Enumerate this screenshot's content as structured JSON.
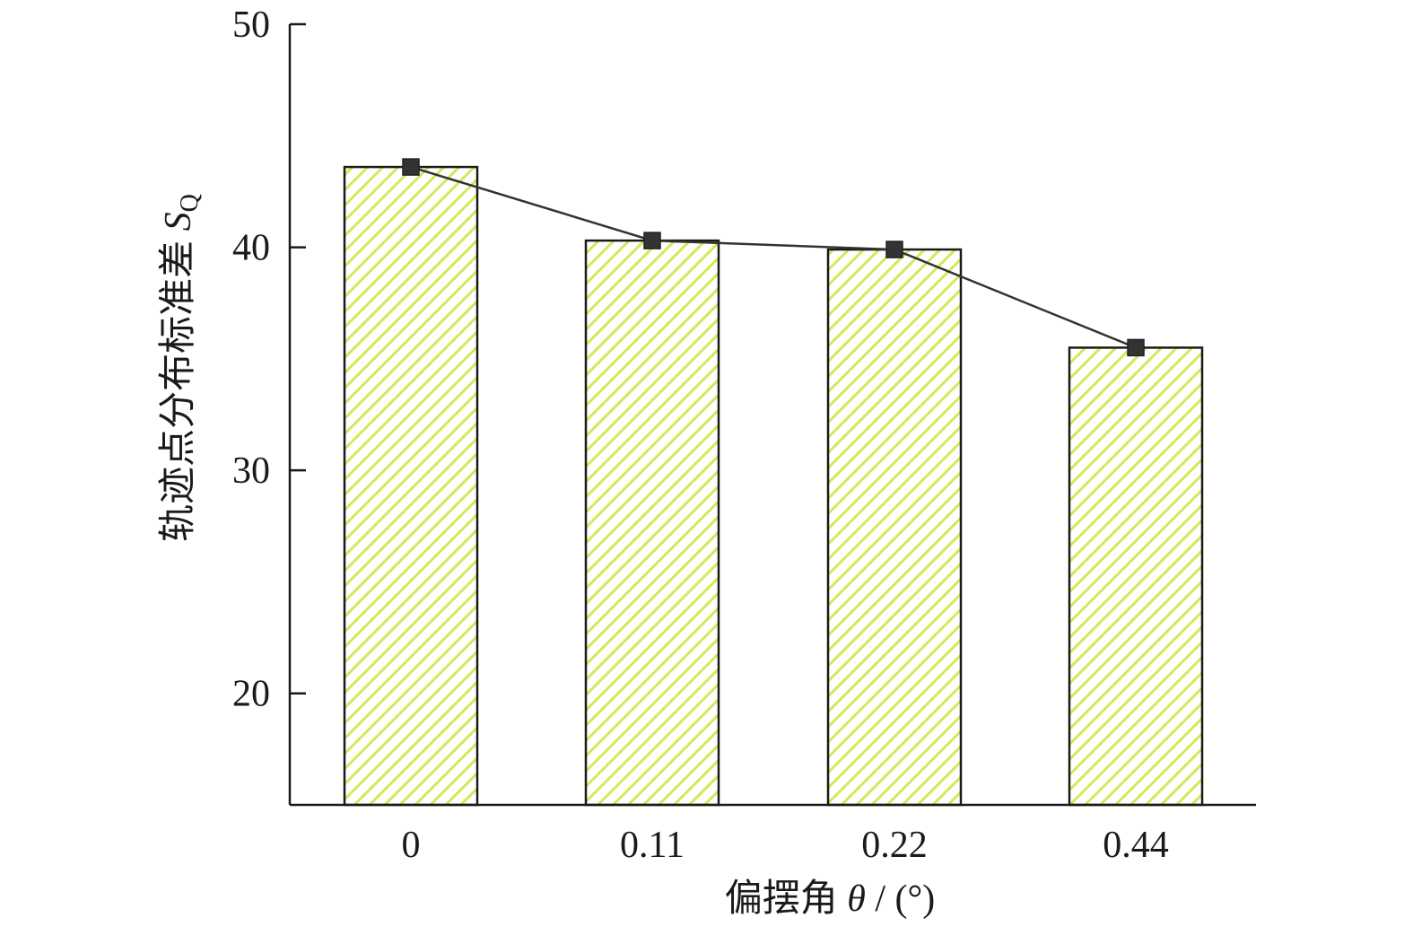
{
  "colors": {
    "bar_fill": "#ffffff",
    "hatch": "#d6e85a",
    "bar_stroke": "#1a1a1a",
    "line": "#333333",
    "marker": "#333333",
    "axis": "#1a1a1a"
  },
  "chart_data": {
    "type": "bar",
    "categories": [
      "0",
      "0.11",
      "0.22",
      "0.44"
    ],
    "values": [
      43.6,
      40.3,
      39.9,
      35.5
    ],
    "line_overlay": {
      "values": [
        43.6,
        40.3,
        39.9,
        35.5
      ],
      "marker": "square"
    },
    "bar_pattern": "diagonal-hatch",
    "title": "",
    "xlabel": {
      "prefix": "偏摆角 ",
      "symbol": "θ",
      "suffix": " / (°)"
    },
    "ylabel": {
      "prefix": "轨迹点分布标准差 ",
      "symbol": "S",
      "subscript": "Q"
    },
    "ylim": [
      15,
      50
    ],
    "yticks": [
      "20",
      "30",
      "40",
      "50"
    ],
    "grid": false,
    "legend": "none"
  }
}
